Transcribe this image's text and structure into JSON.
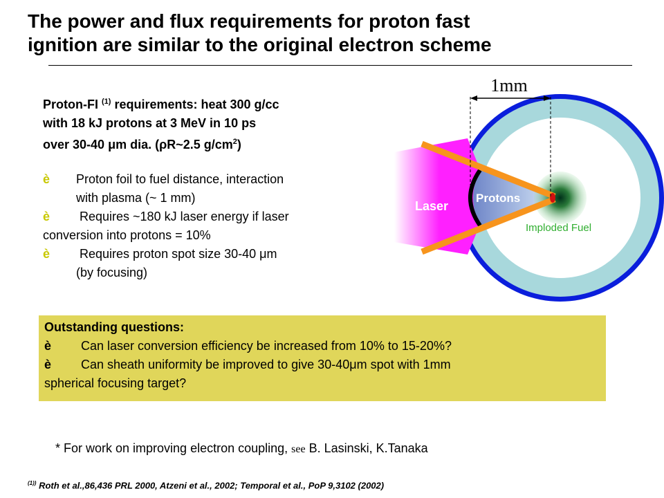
{
  "title": {
    "line1": "The power  and flux requirements for proton fast",
    "line2": "ignition are similar to the original electron scheme"
  },
  "requirements": {
    "prefix": "Proton-FI",
    "ref_mark": "(1)",
    "text1": "requirements: heat 300 g/cc",
    "line2": "with 18 kJ protons at 3 MeV in 10 ps",
    "line3_a": "over 30-40 ",
    "mu": "μ",
    "line3_b": "m dia. (",
    "rho": "ρ",
    "line3_c": "R~2.5 g/cm",
    "sup2": "2",
    "line3_d": ")"
  },
  "bullets": {
    "arrow": "è",
    "b1_line1": "Proton foil to fuel distance, interaction",
    "b1_line2": "with plasma (~ 1 mm)",
    "b2_line1": " Requires ~180 kJ laser energy if laser",
    "b2_line2": "conversion into protons  = 10%",
    "b3_line1a": " Requires proton spot size 30-40 ",
    "b3_mu": "μ",
    "b3_line1b": "m",
    "b3_line2": "(by focusing)"
  },
  "questions": {
    "heading": "Outstanding questions:",
    "arrow": "è",
    "q1": " Can laser conversion efficiency be increased from 10% to 15-20%?",
    "q2a": " Can sheath uniformity be improved to give 30-40",
    "q2_mu": "μ",
    "q2b": "m spot with 1mm",
    "q2_line2": "spherical focusing target?"
  },
  "note": {
    "prefix": "* For  work on improving electron coupling, ",
    "see": "see",
    "suffix": " B. Lasinski, K.Tanaka"
  },
  "reference": {
    "mark": "(1))",
    "text": " Roth et al.,86,436 PRL 2000, Atzeni et al., 2002; Temporal et al., PoP 9,3102 (2002)"
  },
  "diagram": {
    "scale_label": "1mm",
    "laser_label": "Laser",
    "protons_label": "Protons",
    "fuel_label": "Imploded Fuel",
    "colors": {
      "shell_outer": "#0a1edc",
      "shell_fill": "#a8d8dc",
      "laser_beam": "#f7941d",
      "laser_glow": "#ff20ff",
      "protons": "#8aa6d6",
      "fuel_label": "#2fae2f",
      "arrow_accent": "#c8c800",
      "box_bg": "#e0d65a"
    }
  }
}
